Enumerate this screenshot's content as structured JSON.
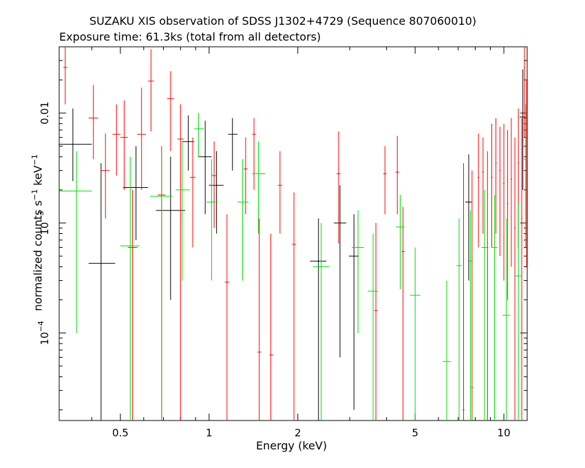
{
  "chart_data": {
    "type": "scatter",
    "title": "SUZAKU XIS observation of SDSS J1302+4729 (Sequence 807060010)",
    "subtitle": "Exposure time: 61.3ks (total from all detectors)",
    "xlabel": "Energy (keV)",
    "ylabel": {
      "main": "normalized counts s",
      "exp1": "−1",
      "mid": " keV",
      "exp2": "−1"
    },
    "x_scale": "log",
    "y_scale": "log",
    "xlim": [
      0.31,
      12.0
    ],
    "ylim": [
      1.6e-05,
      0.04
    ],
    "x_ticks": [
      {
        "value": 0.5,
        "label": "0.5"
      },
      {
        "value": 1,
        "label": "1"
      },
      {
        "value": 2,
        "label": "2"
      },
      {
        "value": 5,
        "label": "5"
      },
      {
        "value": 10,
        "label": "10"
      }
    ],
    "y_ticks": [
      {
        "value": 0.0001,
        "label": "10",
        "sup": "−4"
      },
      {
        "value": 0.001,
        "label": "10",
        "sup": "−3"
      },
      {
        "value": 0.01,
        "label": "0.01",
        "sup": ""
      }
    ],
    "grid": false,
    "colors": {
      "black": "#000000",
      "red": "#ff0000",
      "green": "#00dd00"
    },
    "series": [
      {
        "color": "#000000",
        "points": [
          {
            "x": 0.345,
            "xl": 0.31,
            "xh": 0.4,
            "y": 0.0052,
            "yl": 0.0024,
            "yh": 0.011
          },
          {
            "x": 0.43,
            "xl": 0.39,
            "xh": 0.48,
            "y": 0.00043,
            "yl": 1.6e-05,
            "yh": 0.0035
          },
          {
            "x": 0.565,
            "xl": 0.51,
            "xh": 0.62,
            "y": 0.0021,
            "yl": 0.0007,
            "yh": 0.005
          },
          {
            "x": 0.74,
            "xl": 0.66,
            "xh": 0.83,
            "y": 0.0013,
            "yl": 0.0002,
            "yh": 0.004
          },
          {
            "x": 0.85,
            "xl": 0.81,
            "xh": 0.89,
            "y": 0.0055,
            "yl": 0.003,
            "yh": 0.0095
          },
          {
            "x": 0.97,
            "xl": 0.92,
            "xh": 1.02,
            "y": 0.004,
            "yl": 0.0012,
            "yh": 0.0085
          },
          {
            "x": 1.06,
            "xl": 1.0,
            "xh": 1.12,
            "y": 0.0022,
            "yl": 0.0008,
            "yh": 0.0045
          },
          {
            "x": 1.2,
            "xl": 1.16,
            "xh": 1.25,
            "y": 0.0064,
            "yl": 0.003,
            "yh": 0.009
          },
          {
            "x": 2.35,
            "xl": 2.2,
            "xh": 2.5,
            "y": 0.00045,
            "yl": 1.6e-05,
            "yh": 0.0011
          },
          {
            "x": 2.78,
            "xl": 2.65,
            "xh": 2.92,
            "y": 0.001,
            "yl": 6e-05,
            "yh": 0.0022
          },
          {
            "x": 3.1,
            "xl": 2.98,
            "xh": 3.22,
            "y": 0.0005,
            "yl": 2e-05,
            "yh": 0.0012
          },
          {
            "x": 7.6,
            "xl": 7.4,
            "xh": 7.8,
            "y": 0.00155,
            "yl": 0.0003,
            "yh": 0.0042
          },
          {
            "x": 11.6,
            "xl": 11.3,
            "xh": 11.9,
            "y": 0.0092,
            "yl": 0.002,
            "yh": 0.025
          }
        ]
      },
      {
        "color": "#ff0000",
        "points": [
          {
            "x": 0.325,
            "xl": 0.32,
            "xh": 0.33,
            "y": 0.026,
            "yl": 0.012,
            "yh": 0.06
          },
          {
            "x": 0.405,
            "xl": 0.39,
            "xh": 0.42,
            "y": 0.009,
            "yl": 0.0038,
            "yh": 0.018
          },
          {
            "x": 0.445,
            "xl": 0.43,
            "xh": 0.46,
            "y": 0.003,
            "yl": 0.0011,
            "yh": 0.0065
          },
          {
            "x": 0.485,
            "xl": 0.47,
            "xh": 0.5,
            "y": 0.0064,
            "yl": 0.0027,
            "yh": 0.012
          },
          {
            "x": 0.515,
            "xl": 0.5,
            "xh": 0.53,
            "y": 0.006,
            "yl": 0.002,
            "yh": 0.013
          },
          {
            "x": 0.55,
            "xl": 0.53,
            "xh": 0.57,
            "y": 0.0006,
            "yl": 1.6e-05,
            "yh": 0.002
          },
          {
            "x": 0.59,
            "xl": 0.57,
            "xh": 0.61,
            "y": 0.0064,
            "yl": 0.002,
            "yh": 0.017
          },
          {
            "x": 0.635,
            "xl": 0.62,
            "xh": 0.65,
            "y": 0.0195,
            "yl": 0.0068,
            "yh": 0.038
          },
          {
            "x": 0.69,
            "xl": 0.67,
            "xh": 0.71,
            "y": 0.0018,
            "yl": 1.6e-05,
            "yh": 0.005
          },
          {
            "x": 0.74,
            "xl": 0.72,
            "xh": 0.76,
            "y": 0.0135,
            "yl": 0.0045,
            "yh": 0.024
          },
          {
            "x": 0.8,
            "xl": 0.78,
            "xh": 0.82,
            "y": 0.0058,
            "yl": 1.6e-05,
            "yh": 0.012
          },
          {
            "x": 0.88,
            "xl": 0.86,
            "xh": 0.9,
            "y": 0.0026,
            "yl": 0.0006,
            "yh": 0.006
          },
          {
            "x": 1.04,
            "xl": 1.02,
            "xh": 1.06,
            "y": 0.0027,
            "yl": 0.0009,
            "yh": 0.0055
          },
          {
            "x": 1.15,
            "xl": 1.13,
            "xh": 1.17,
            "y": 0.00029,
            "yl": 1.6e-05,
            "yh": 0.0012
          },
          {
            "x": 1.33,
            "xl": 1.31,
            "xh": 1.35,
            "y": 0.0031,
            "yl": 0.0012,
            "yh": 0.006
          },
          {
            "x": 1.42,
            "xl": 1.4,
            "xh": 1.44,
            "y": 0.0064,
            "yl": 0.002,
            "yh": 0.009
          },
          {
            "x": 1.48,
            "xl": 1.46,
            "xh": 1.5,
            "y": 6.7e-05,
            "yl": 1.6e-05,
            "yh": 0.0011
          },
          {
            "x": 1.62,
            "xl": 1.6,
            "xh": 1.65,
            "y": 6.3e-05,
            "yl": 1.6e-05,
            "yh": 0.0008
          },
          {
            "x": 1.74,
            "xl": 1.71,
            "xh": 1.77,
            "y": 0.0022,
            "yl": 0.0008,
            "yh": 0.0045
          },
          {
            "x": 1.94,
            "xl": 1.91,
            "xh": 1.97,
            "y": 0.00064,
            "yl": 1.6e-05,
            "yh": 0.0019
          },
          {
            "x": 2.75,
            "xl": 2.71,
            "xh": 2.79,
            "y": 0.0028,
            "yl": 0.00065,
            "yh": 0.0068
          },
          {
            "x": 3.68,
            "xl": 3.63,
            "xh": 3.73,
            "y": 0.00016,
            "yl": 1.6e-05,
            "yh": 0.001
          },
          {
            "x": 3.95,
            "xl": 3.9,
            "xh": 4.0,
            "y": 0.0028,
            "yl": 0.0012,
            "yh": 0.005
          },
          {
            "x": 4.35,
            "xl": 4.29,
            "xh": 4.41,
            "y": 0.0029,
            "yl": 0.0012,
            "yh": 0.0062
          },
          {
            "x": 4.55,
            "xl": 4.5,
            "xh": 4.6,
            "y": 0.00055,
            "yl": 1.6e-05,
            "yh": 0.0014
          },
          {
            "x": 7.3,
            "xl": 7.25,
            "xh": 7.35,
            "y": 2e-05,
            "yl": 1.6e-05,
            "yh": 0.0035
          },
          {
            "x": 7.8,
            "xl": 7.75,
            "xh": 7.85,
            "y": 3.2e-05,
            "yl": 1.6e-05,
            "yh": 0.003
          },
          {
            "x": 8.2,
            "xl": 8.15,
            "xh": 8.25,
            "y": 0.0026,
            "yl": 0.0006,
            "yh": 0.0065
          },
          {
            "x": 8.5,
            "xl": 8.45,
            "xh": 8.55,
            "y": 0.0029,
            "yl": 0.0008,
            "yh": 0.006
          },
          {
            "x": 8.8,
            "xl": 8.75,
            "xh": 8.85,
            "y": 0.0006,
            "yl": 1.6e-05,
            "yh": 0.0045
          },
          {
            "x": 9.1,
            "xl": 9.05,
            "xh": 9.15,
            "y": 0.0026,
            "yl": 0.0006,
            "yh": 0.008
          },
          {
            "x": 9.4,
            "xl": 9.35,
            "xh": 9.45,
            "y": 0.0035,
            "yl": 0.0008,
            "yh": 0.009
          },
          {
            "x": 9.7,
            "xl": 9.65,
            "xh": 9.75,
            "y": 0.003,
            "yl": 0.0005,
            "yh": 0.0075
          },
          {
            "x": 10.0,
            "xl": 9.95,
            "xh": 10.05,
            "y": 0.0023,
            "yl": 0.0003,
            "yh": 0.008
          },
          {
            "x": 10.3,
            "xl": 10.25,
            "xh": 10.35,
            "y": 0.0015,
            "yl": 0.0002,
            "yh": 0.007
          },
          {
            "x": 10.6,
            "xl": 10.55,
            "xh": 10.65,
            "y": 0.0025,
            "yl": 0.0004,
            "yh": 0.009
          },
          {
            "x": 10.9,
            "xl": 10.85,
            "xh": 10.95,
            "y": 0.0009,
            "yl": 1.6e-05,
            "yh": 0.006
          },
          {
            "x": 11.2,
            "xl": 11.15,
            "xh": 11.25,
            "y": 0.0035,
            "yl": 0.0006,
            "yh": 0.011
          },
          {
            "x": 11.5,
            "xl": 11.45,
            "xh": 11.55,
            "y": 0.0011,
            "yl": 1.6e-05,
            "yh": 0.009
          },
          {
            "x": 11.75,
            "xl": 11.7,
            "xh": 11.8,
            "y": 0.026,
            "yl": 0.006,
            "yh": 0.045
          },
          {
            "x": 11.95,
            "xl": 11.9,
            "xh": 12.0,
            "y": 0.0045,
            "yl": 0.0004,
            "yh": 0.02
          }
        ]
      },
      {
        "color": "#00dd00",
        "points": [
          {
            "x": 0.355,
            "xl": 0.31,
            "xh": 0.4,
            "y": 0.00195,
            "yl": 0.0001,
            "yh": 0.0045
          },
          {
            "x": 0.54,
            "xl": 0.5,
            "xh": 0.58,
            "y": 0.00062,
            "yl": 1.6e-05,
            "yh": 0.004
          },
          {
            "x": 0.69,
            "xl": 0.63,
            "xh": 0.75,
            "y": 0.00175,
            "yl": 1.6e-05,
            "yh": 0.0042
          },
          {
            "x": 0.81,
            "xl": 0.77,
            "xh": 0.86,
            "y": 0.002,
            "yl": 0.0003,
            "yh": 0.0055
          },
          {
            "x": 0.92,
            "xl": 0.89,
            "xh": 0.96,
            "y": 0.0072,
            "yl": 0.004,
            "yh": 0.01
          },
          {
            "x": 1.02,
            "xl": 0.98,
            "xh": 1.07,
            "y": 0.00155,
            "yl": 0.0003,
            "yh": 0.0038
          },
          {
            "x": 1.3,
            "xl": 1.25,
            "xh": 1.36,
            "y": 0.00155,
            "yl": 0.0003,
            "yh": 0.0038
          },
          {
            "x": 1.47,
            "xl": 1.4,
            "xh": 1.55,
            "y": 0.0028,
            "yl": 0.0008,
            "yh": 0.0055
          },
          {
            "x": 2.4,
            "xl": 2.25,
            "xh": 2.55,
            "y": 0.0004,
            "yl": 1.6e-05,
            "yh": 0.001
          },
          {
            "x": 3.2,
            "xl": 3.05,
            "xh": 3.35,
            "y": 0.0006,
            "yl": 0.0001,
            "yh": 0.0013
          },
          {
            "x": 3.6,
            "xl": 3.45,
            "xh": 3.75,
            "y": 0.00024,
            "yl": 1.6e-05,
            "yh": 0.0008
          },
          {
            "x": 4.45,
            "xl": 4.3,
            "xh": 4.6,
            "y": 0.00092,
            "yl": 0.00025,
            "yh": 0.0018
          },
          {
            "x": 5.0,
            "xl": 4.8,
            "xh": 5.2,
            "y": 0.00022,
            "yl": 1.6e-05,
            "yh": 0.0006
          },
          {
            "x": 6.4,
            "xl": 6.2,
            "xh": 6.6,
            "y": 5.5e-05,
            "yl": 1.6e-05,
            "yh": 0.0003
          },
          {
            "x": 7.05,
            "xl": 6.9,
            "xh": 7.2,
            "y": 0.00041,
            "yl": 1.6e-05,
            "yh": 0.0011
          },
          {
            "x": 7.7,
            "xl": 7.55,
            "xh": 7.85,
            "y": 0.00045,
            "yl": 1.6e-05,
            "yh": 0.0013
          },
          {
            "x": 8.6,
            "xl": 8.4,
            "xh": 8.8,
            "y": 0.0006,
            "yl": 1.6e-05,
            "yh": 0.002
          },
          {
            "x": 9.3,
            "xl": 9.1,
            "xh": 9.5,
            "y": 0.0006,
            "yl": 1.6e-05,
            "yh": 0.0018
          },
          {
            "x": 10.2,
            "xl": 9.9,
            "xh": 10.5,
            "y": 0.000145,
            "yl": 1.6e-05,
            "yh": 0.0011
          },
          {
            "x": 11.2,
            "xl": 10.9,
            "xh": 11.5,
            "y": 0.00033,
            "yl": 1.6e-05,
            "yh": 0.0015
          },
          {
            "x": 11.85,
            "xl": 11.7,
            "xh": 12.0,
            "y": 0.0038,
            "yl": 0.0006,
            "yh": 0.012
          }
        ]
      }
    ]
  }
}
